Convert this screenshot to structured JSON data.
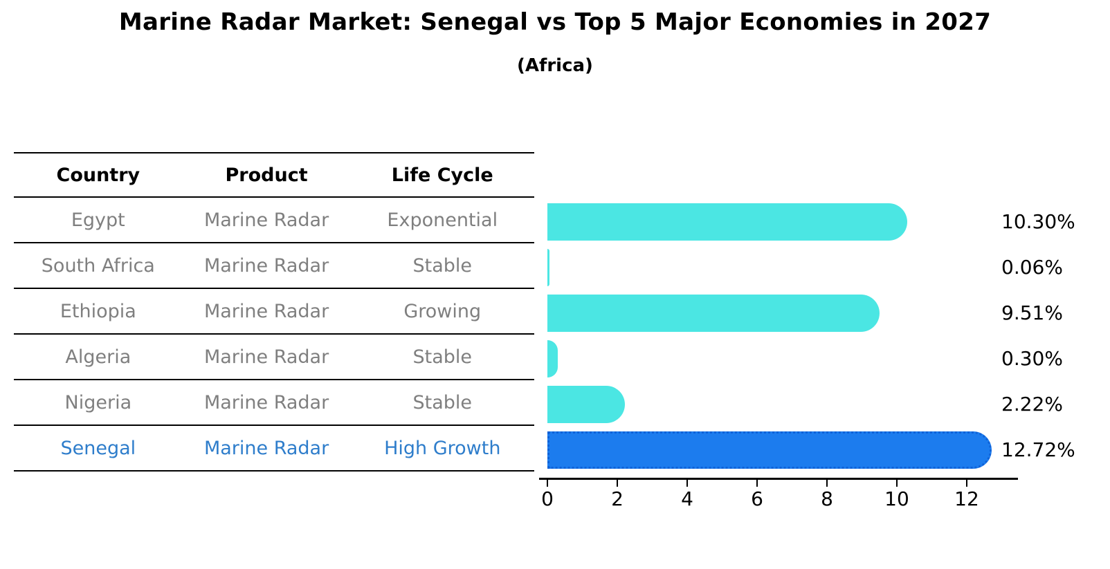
{
  "header": {
    "title": "Marine Radar Market: Senegal vs Top 5 Major Economies in 2027",
    "subtitle": "(Africa)"
  },
  "table": {
    "columns": [
      "Country",
      "Product",
      "Life Cycle"
    ],
    "rows": [
      {
        "country": "Egypt",
        "product": "Marine Radar",
        "life_cycle": "Exponential",
        "highlight": false
      },
      {
        "country": "South Africa",
        "product": "Marine Radar",
        "life_cycle": "Stable",
        "highlight": false
      },
      {
        "country": "Ethiopia",
        "product": "Marine Radar",
        "life_cycle": "Growing",
        "highlight": false
      },
      {
        "country": "Algeria",
        "product": "Marine Radar",
        "life_cycle": "Stable",
        "highlight": false
      },
      {
        "country": "Nigeria",
        "product": "Marine Radar",
        "life_cycle": "Stable",
        "highlight": false
      },
      {
        "country": "Senegal",
        "product": "Marine Radar",
        "life_cycle": "High Growth",
        "highlight": true
      }
    ]
  },
  "chart_data": {
    "type": "bar",
    "orientation": "horizontal",
    "title": "Marine Radar Market: Senegal vs Top 5 Major Economies in 2027",
    "subtitle": "(Africa)",
    "categories": [
      "Egypt",
      "South Africa",
      "Ethiopia",
      "Algeria",
      "Nigeria",
      "Senegal"
    ],
    "values": [
      10.3,
      0.06,
      9.51,
      0.3,
      2.22,
      12.72
    ],
    "value_labels": [
      "10.30%",
      "0.06%",
      "9.51%",
      "0.30%",
      "2.22%",
      "12.72%"
    ],
    "xlabel": "",
    "ylabel": "",
    "xlim": [
      0,
      13.5
    ],
    "x_ticks": [
      0,
      2,
      4,
      6,
      8,
      10,
      12
    ],
    "grid": false,
    "legend_position": "none",
    "bar_color": "#4be6e3",
    "highlight_bar_color": "#1c7cee",
    "highlight_border_color": "#0f62d8",
    "highlight_index": 5,
    "highlight_text_color": "#2e7dcb",
    "table_text_color": "#7f7f7f"
  }
}
